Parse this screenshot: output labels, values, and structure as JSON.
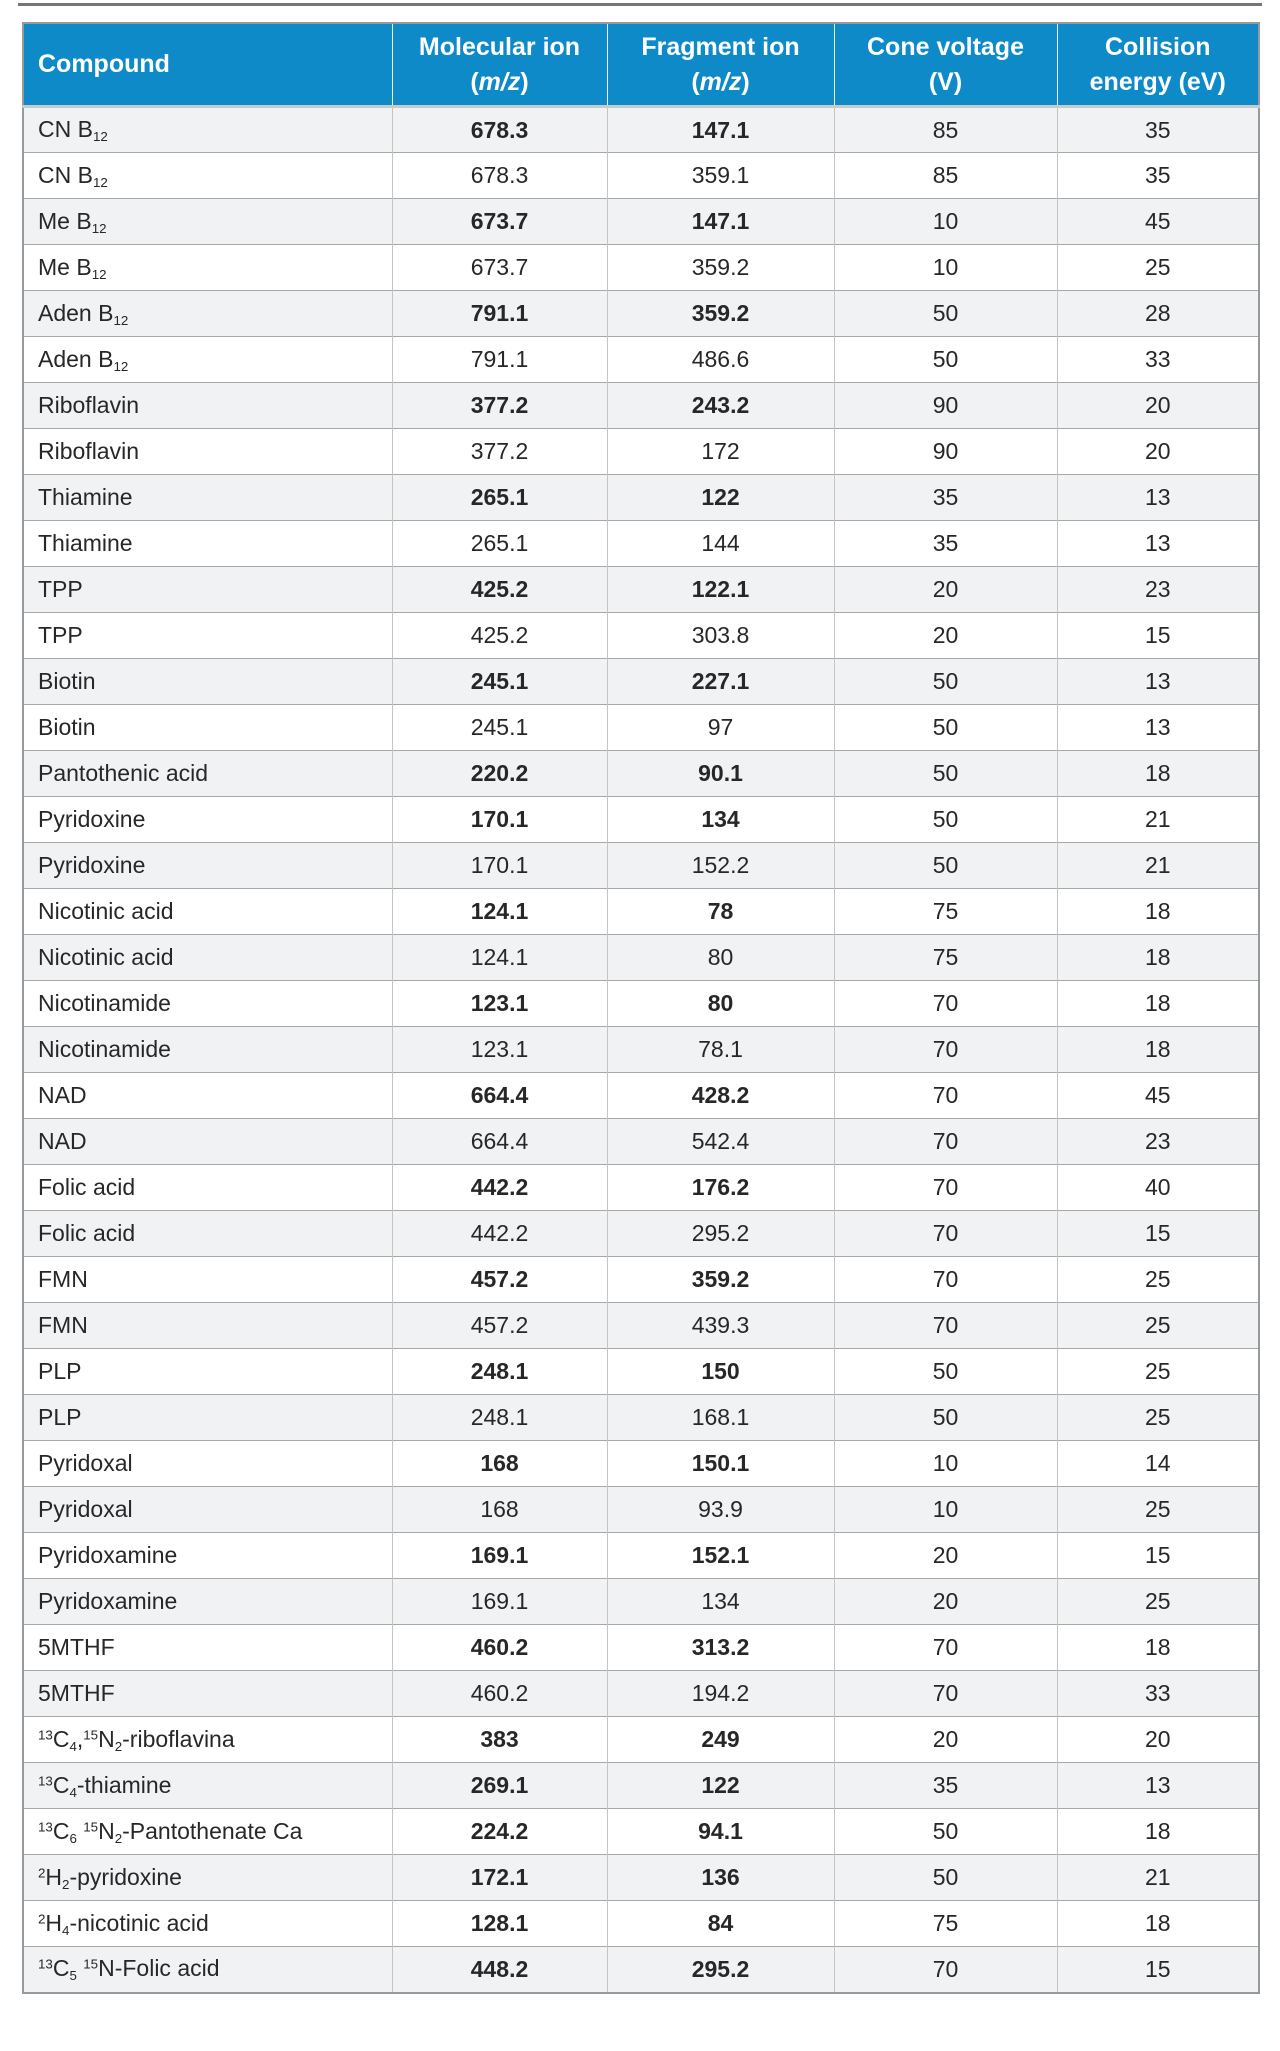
{
  "table": {
    "colors": {
      "header_bg": "#0e8ac9",
      "header_text": "#ffffff",
      "row_alt_bg": "#f1f2f4",
      "text": "#272727"
    },
    "header": {
      "compound": "Compound",
      "molecular": {
        "line1": "Molecular ion",
        "open": "(",
        "italic": "m/z",
        "close": ")"
      },
      "fragment": {
        "line1": "Fragment ion",
        "open": "(",
        "italic": "m/z",
        "close": ")"
      },
      "cone": {
        "line1": "Cone voltage",
        "line2": "(V)"
      },
      "collision": {
        "line1": "Collision",
        "line2": "energy (eV)"
      }
    },
    "rows": [
      {
        "compound": "CN B~12~",
        "mol": "678.3",
        "frag": "147.1",
        "cone": "85",
        "ce": "35",
        "bold": true
      },
      {
        "compound": "CN B~12~",
        "mol": "678.3",
        "frag": "359.1",
        "cone": "85",
        "ce": "35",
        "bold": false
      },
      {
        "compound": "Me B~12~",
        "mol": "673.7",
        "frag": "147.1",
        "cone": "10",
        "ce": "45",
        "bold": true
      },
      {
        "compound": "Me B~12~",
        "mol": "673.7",
        "frag": "359.2",
        "cone": "10",
        "ce": "25",
        "bold": false
      },
      {
        "compound": "Aden B~12~",
        "mol": "791.1",
        "frag": "359.2",
        "cone": "50",
        "ce": "28",
        "bold": true
      },
      {
        "compound": "Aden B~12~",
        "mol": "791.1",
        "frag": "486.6",
        "cone": "50",
        "ce": "33",
        "bold": false
      },
      {
        "compound": "Riboflavin",
        "mol": "377.2",
        "frag": "243.2",
        "cone": "90",
        "ce": "20",
        "bold": true
      },
      {
        "compound": "Riboflavin",
        "mol": "377.2",
        "frag": "172",
        "cone": "90",
        "ce": "20",
        "bold": false
      },
      {
        "compound": "Thiamine",
        "mol": "265.1",
        "frag": "122",
        "cone": "35",
        "ce": "13",
        "bold": true
      },
      {
        "compound": "Thiamine",
        "mol": "265.1",
        "frag": "144",
        "cone": "35",
        "ce": "13",
        "bold": false
      },
      {
        "compound": "TPP",
        "mol": "425.2",
        "frag": "122.1",
        "cone": "20",
        "ce": "23",
        "bold": true
      },
      {
        "compound": "TPP",
        "mol": "425.2",
        "frag": "303.8",
        "cone": "20",
        "ce": "15",
        "bold": false
      },
      {
        "compound": "Biotin",
        "mol": "245.1",
        "frag": "227.1",
        "cone": "50",
        "ce": "13",
        "bold": true
      },
      {
        "compound": "Biotin",
        "mol": "245.1",
        "frag": "97",
        "cone": "50",
        "ce": "13",
        "bold": false
      },
      {
        "compound": "Pantothenic acid",
        "mol": "220.2",
        "frag": "90.1",
        "cone": "50",
        "ce": "18",
        "bold": true
      },
      {
        "compound": "Pyridoxine",
        "mol": "170.1",
        "frag": "134",
        "cone": "50",
        "ce": "21",
        "bold": true
      },
      {
        "compound": "Pyridoxine",
        "mol": "170.1",
        "frag": "152.2",
        "cone": "50",
        "ce": "21",
        "bold": false
      },
      {
        "compound": "Nicotinic acid",
        "mol": "124.1",
        "frag": "78",
        "cone": "75",
        "ce": "18",
        "bold": true
      },
      {
        "compound": "Nicotinic acid",
        "mol": "124.1",
        "frag": "80",
        "cone": "75",
        "ce": "18",
        "bold": false
      },
      {
        "compound": "Nicotinamide",
        "mol": "123.1",
        "frag": "80",
        "cone": "70",
        "ce": "18",
        "bold": true
      },
      {
        "compound": "Nicotinamide",
        "mol": "123.1",
        "frag": "78.1",
        "cone": "70",
        "ce": "18",
        "bold": false
      },
      {
        "compound": "NAD",
        "mol": "664.4",
        "frag": "428.2",
        "cone": "70",
        "ce": "45",
        "bold": true
      },
      {
        "compound": "NAD",
        "mol": "664.4",
        "frag": "542.4",
        "cone": "70",
        "ce": "23",
        "bold": false
      },
      {
        "compound": "Folic acid",
        "mol": "442.2",
        "frag": "176.2",
        "cone": "70",
        "ce": "40",
        "bold": true
      },
      {
        "compound": "Folic acid",
        "mol": "442.2",
        "frag": "295.2",
        "cone": "70",
        "ce": "15",
        "bold": false
      },
      {
        "compound": "FMN",
        "mol": "457.2",
        "frag": "359.2",
        "cone": "70",
        "ce": "25",
        "bold": true
      },
      {
        "compound": "FMN",
        "mol": "457.2",
        "frag": "439.3",
        "cone": "70",
        "ce": "25",
        "bold": false
      },
      {
        "compound": "PLP",
        "mol": "248.1",
        "frag": "150",
        "cone": "50",
        "ce": "25",
        "bold": true
      },
      {
        "compound": "PLP",
        "mol": "248.1",
        "frag": "168.1",
        "cone": "50",
        "ce": "25",
        "bold": false
      },
      {
        "compound": "Pyridoxal",
        "mol": "168",
        "frag": "150.1",
        "cone": "10",
        "ce": "14",
        "bold": true
      },
      {
        "compound": "Pyridoxal",
        "mol": "168",
        "frag": "93.9",
        "cone": "10",
        "ce": "25",
        "bold": false
      },
      {
        "compound": "Pyridoxamine",
        "mol": "169.1",
        "frag": "152.1",
        "cone": "20",
        "ce": "15",
        "bold": true
      },
      {
        "compound": "Pyridoxamine",
        "mol": "169.1",
        "frag": "134",
        "cone": "20",
        "ce": "25",
        "bold": false
      },
      {
        "compound": "5MTHF",
        "mol": "460.2",
        "frag": "313.2",
        "cone": "70",
        "ce": "18",
        "bold": true
      },
      {
        "compound": "5MTHF",
        "mol": "460.2",
        "frag": "194.2",
        "cone": "70",
        "ce": "33",
        "bold": false
      },
      {
        "compound": "^13^C~4~,^15^N~2~-riboflavina",
        "mol": "383",
        "frag": "249",
        "cone": "20",
        "ce": "20",
        "bold": true
      },
      {
        "compound": "^13^C~4~-thiamine",
        "mol": "269.1",
        "frag": "122",
        "cone": "35",
        "ce": "13",
        "bold": true
      },
      {
        "compound": "^13^C~6~ ^15^N~2~-Pantothenate Ca",
        "mol": "224.2",
        "frag": "94.1",
        "cone": "50",
        "ce": "18",
        "bold": true
      },
      {
        "compound": "^2^H~2~-pyridoxine",
        "mol": "172.1",
        "frag": "136",
        "cone": "50",
        "ce": "21",
        "bold": true
      },
      {
        "compound": "^2^H~4~-nicotinic acid",
        "mol": "128.1",
        "frag": "84",
        "cone": "75",
        "ce": "18",
        "bold": true
      },
      {
        "compound": "^13^C~5~ ^15^N-Folic acid",
        "mol": "448.2",
        "frag": "295.2",
        "cone": "70",
        "ce": "15",
        "bold": true
      }
    ]
  }
}
